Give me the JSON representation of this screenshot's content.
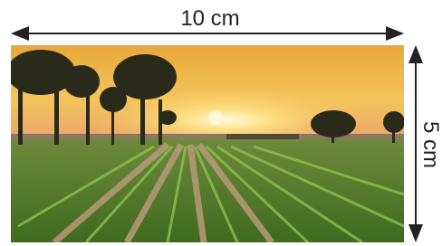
{
  "labels": {
    "width": "10 cm",
    "height": "5 cm"
  }
}
